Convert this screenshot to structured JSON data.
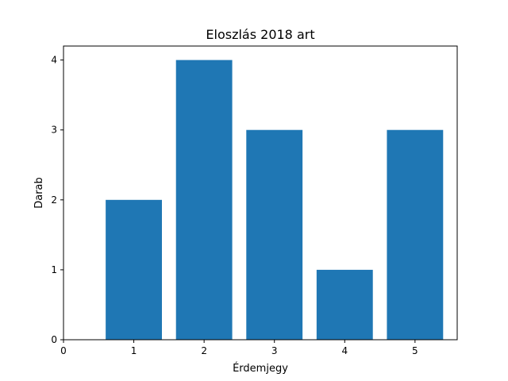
{
  "chart_data": {
    "type": "bar",
    "title": "Eloszlás 2018 art",
    "xlabel": "Érdemjegy",
    "ylabel": "Darab",
    "x": [
      1,
      2,
      3,
      4,
      5
    ],
    "values": [
      2,
      4,
      3,
      1,
      3
    ],
    "bar_width": 0.8,
    "xlim": [
      0,
      5.6
    ],
    "ylim": [
      0,
      4.2
    ],
    "x_ticks": [
      "0",
      "1",
      "2",
      "3",
      "4",
      "5"
    ],
    "y_ticks": [
      "0",
      "1",
      "2",
      "3",
      "4"
    ],
    "bar_color": "#1f77b4",
    "grid": false
  }
}
